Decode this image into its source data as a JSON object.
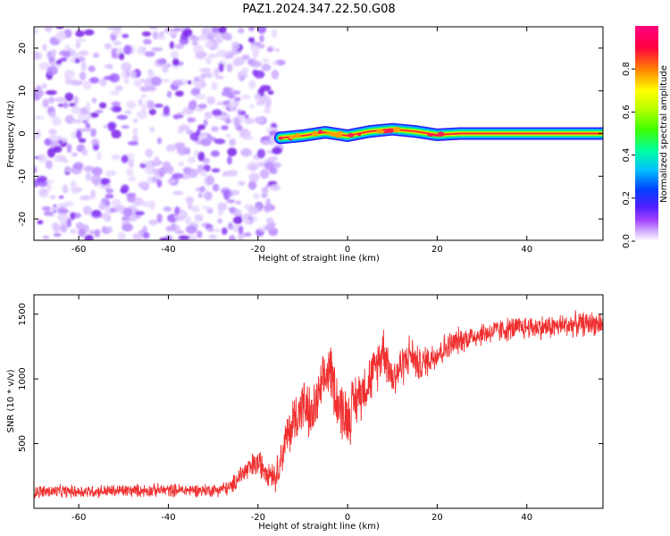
{
  "figure_title": "PAZ1.2024.347.22.50.G08",
  "chart_data": [
    {
      "type": "heatmap",
      "xlabel": "Height of straight line (km)",
      "ylabel": "Frequency (Hz)",
      "xlim": [
        -70,
        57
      ],
      "ylim": [
        -25,
        25
      ],
      "xticks": [
        "-60",
        "-40",
        "-20",
        "0",
        "20",
        "40"
      ],
      "yticks": [
        "-20",
        "-10",
        "0",
        "10",
        "20"
      ],
      "noise_region_x": [
        -70,
        -15
      ],
      "signal_track": {
        "x": [
          -15,
          -10,
          -5,
          0,
          5,
          10,
          15,
          20,
          25,
          30,
          40,
          50,
          57
        ],
        "frequency": [
          -1.0,
          -0.5,
          0.3,
          -0.5,
          0.5,
          1.0,
          0.5,
          -0.3,
          0.0,
          0.0,
          0.0,
          0.0,
          0.0
        ]
      },
      "colorbar": {
        "label": "Normalized spectral amplitude",
        "range": [
          0.0,
          1.0
        ],
        "ticks": [
          "0.0",
          "0.2",
          "0.4",
          "0.6",
          "0.8"
        ],
        "colors": [
          "#ffffff",
          "#d8b8ff",
          "#a040ff",
          "#5020ff",
          "#0040ff",
          "#00c0ff",
          "#00ffa0",
          "#40ff00",
          "#c0ff00",
          "#ffff00",
          "#ff8000",
          "#ff0040",
          "#ff0080"
        ]
      },
      "grid": false
    },
    {
      "type": "line",
      "xlabel": "Height of straight line (km)",
      "ylabel": "SNR (10 * v/v)",
      "xlim": [
        -70,
        57
      ],
      "ylim": [
        0,
        1650
      ],
      "xticks": [
        "-60",
        "-40",
        "-20",
        "0",
        "20",
        "40"
      ],
      "yticks": [
        "500",
        "1000",
        "1500"
      ],
      "series": [
        {
          "color": "#f03030",
          "x": [
            -70,
            -60,
            -50,
            -40,
            -30,
            -26,
            -24,
            -22,
            -20,
            -18,
            -16,
            -14,
            -12,
            -10,
            -8,
            -6,
            -4,
            -2,
            0,
            2,
            4,
            6,
            8,
            10,
            12,
            14,
            16,
            18,
            20,
            25,
            30,
            35,
            40,
            45,
            50,
            55,
            57
          ],
          "values": [
            130,
            130,
            135,
            140,
            140,
            160,
            260,
            300,
            350,
            300,
            250,
            500,
            680,
            800,
            700,
            900,
            1100,
            800,
            700,
            850,
            950,
            1050,
            1250,
            1000,
            1100,
            1200,
            1100,
            1150,
            1200,
            1300,
            1350,
            1380,
            1400,
            1400,
            1420,
            1430,
            1430
          ],
          "noise_amplitude": [
            60,
            60,
            60,
            60,
            60,
            70,
            100,
            120,
            130,
            130,
            140,
            200,
            250,
            250,
            250,
            250,
            250,
            280,
            280,
            250,
            230,
            230,
            230,
            200,
            200,
            180,
            160,
            150,
            150,
            120,
            110,
            110,
            110,
            110,
            110,
            110,
            110
          ]
        }
      ],
      "grid": false
    }
  ]
}
